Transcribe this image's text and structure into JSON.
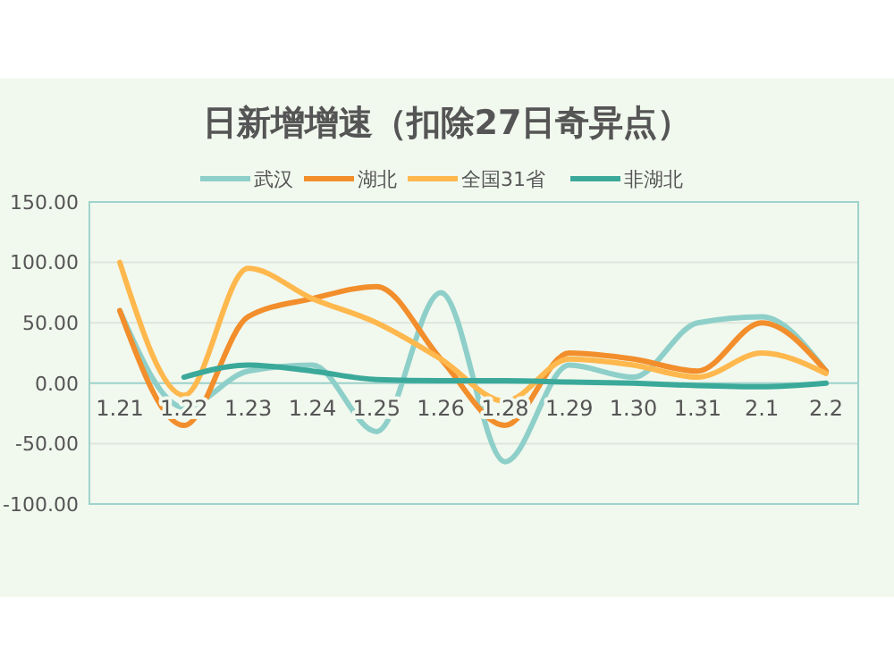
{
  "chart_data": {
    "type": "line",
    "title": "日新增增速（扣除27日奇异点）",
    "categories": [
      "1.21",
      "1.22",
      "1.23",
      "1.24",
      "1.25",
      "1.26",
      "1.28",
      "1.29",
      "1.30",
      "1.31",
      "2.1",
      "2.2"
    ],
    "series": [
      {
        "name": "武汉",
        "color": "#8ecfc9",
        "values": [
          60,
          -20,
          10,
          15,
          -40,
          75,
          -65,
          15,
          5,
          50,
          55,
          10
        ]
      },
      {
        "name": "湖北",
        "color": "#f28e2b",
        "values": [
          60,
          -35,
          55,
          70,
          80,
          20,
          -35,
          25,
          20,
          10,
          50,
          10
        ]
      },
      {
        "name": "全国31省",
        "color": "#ffb84d",
        "values": [
          100,
          -10,
          95,
          70,
          50,
          20,
          -15,
          20,
          15,
          5,
          25,
          8
        ]
      },
      {
        "name": "非湖北",
        "color": "#3aa99a",
        "values": [
          null,
          5,
          15,
          10,
          3,
          2,
          2,
          1,
          0,
          -2,
          -3,
          0
        ]
      }
    ],
    "ylim": [
      -100,
      150
    ],
    "yticks": [
      {
        "value": -100,
        "label": "-100.00"
      },
      {
        "value": -50,
        "label": "-50.00"
      },
      {
        "value": 0,
        "label": "0.00"
      },
      {
        "value": 50,
        "label": "50.00"
      },
      {
        "value": 100,
        "label": "100.00"
      },
      {
        "value": 150,
        "label": "150.00"
      }
    ],
    "grid": "y",
    "legend": "top",
    "marker": "none",
    "line_style": "solid"
  }
}
